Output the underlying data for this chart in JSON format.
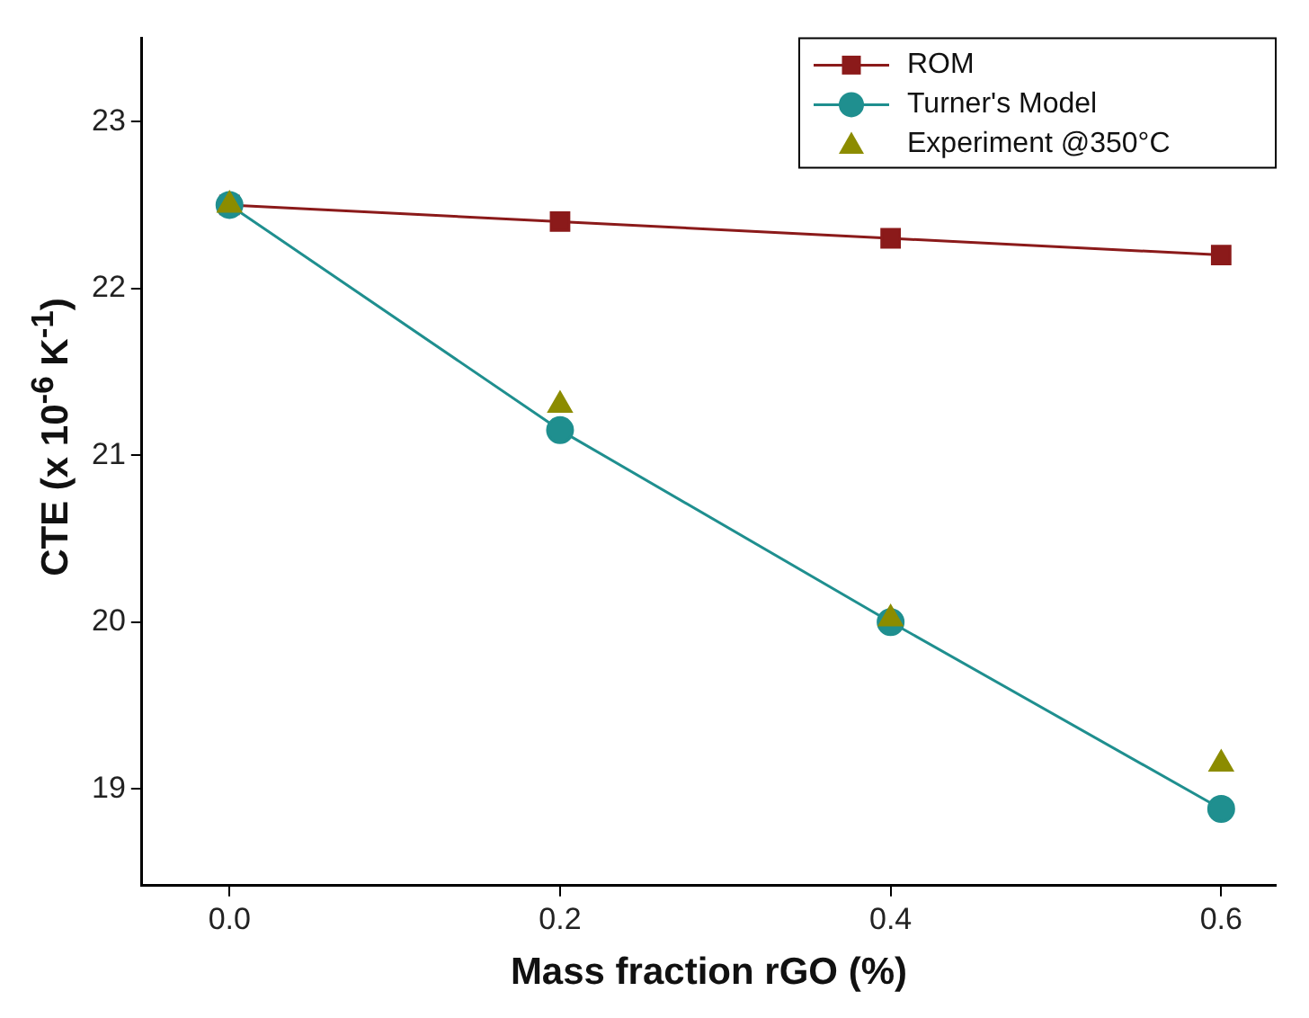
{
  "chart_data": {
    "type": "line",
    "xlabel": "Mass fraction rGO (%)",
    "ylabel": "CTE (x 10$^{-6}$ K$^{-1}$)",
    "x": [
      0,
      0.2,
      0.4,
      0.6
    ],
    "series": [
      {
        "name": "ROM",
        "color": "#8b1a1a",
        "type": "line",
        "marker": "square",
        "values": [
          22.5,
          22.4,
          22.3,
          22.2
        ]
      },
      {
        "name": "Turner's Model",
        "color": "#1f8f8f",
        "type": "line",
        "marker": "circle",
        "values": [
          22.5,
          21.15,
          20.0,
          18.88
        ]
      },
      {
        "name": "Experiment @350°C",
        "color": "#8c8c00",
        "type": "scatter",
        "marker": "triangle",
        "values": [
          22.5,
          21.3,
          20.02,
          19.15
        ]
      }
    ],
    "xlim": [
      -0.053,
      0.633
    ],
    "xticks": [
      {
        "value": 0,
        "label": "0.0"
      },
      {
        "value": 0.2,
        "label": "0.2"
      },
      {
        "value": 0.4,
        "label": "0.4"
      },
      {
        "value": 0.6,
        "label": "0.6"
      }
    ],
    "ylim": [
      18.42,
      23.5
    ],
    "yticks": [
      19,
      20,
      21,
      22,
      23
    ],
    "grid": false,
    "legend": "top right"
  }
}
